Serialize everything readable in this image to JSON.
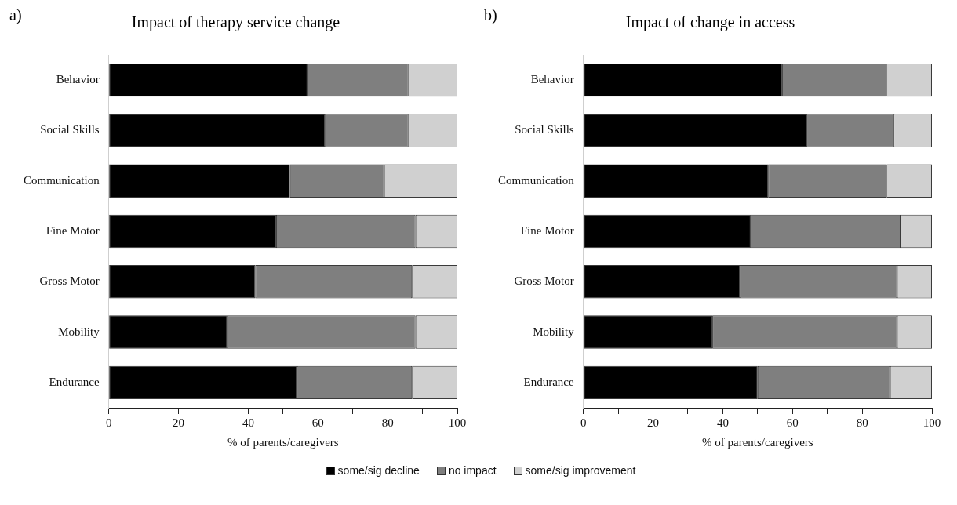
{
  "chart_data": [
    {
      "type": "bar",
      "orientation": "horizontal",
      "stacked": true,
      "title": "Impact of therapy service change",
      "xlabel": "% of parents/caregivers",
      "annotations": [
        "a)"
      ],
      "categories": [
        "Behavior",
        "Social Skills",
        "Communication",
        "Fine Motor",
        "Gross Motor",
        "Mobility",
        "Endurance"
      ],
      "series": [
        {
          "color": "#000000",
          "values": [
            57,
            62,
            52,
            48,
            42,
            34,
            54
          ]
        },
        {
          "color": "#7f7f7f",
          "values": [
            29,
            24,
            27,
            40,
            45,
            54,
            33
          ]
        },
        {
          "color": "#d0d0d0",
          "values": [
            14,
            14,
            21,
            12,
            13,
            12,
            13
          ]
        }
      ],
      "xlim": [
        0,
        100
      ],
      "xticks": [
        0,
        {
          "value": 10,
          "label": null
        },
        20,
        {
          "value": 30,
          "label": null
        },
        40,
        {
          "value": 50,
          "label": null
        },
        60,
        {
          "value": 70,
          "label": null
        },
        80,
        {
          "value": 90,
          "label": null
        },
        100
      ],
      "grid": false
    },
    {
      "type": "bar",
      "orientation": "horizontal",
      "stacked": true,
      "title": "Impact of change in access",
      "xlabel": "% of parents/caregivers",
      "annotations": [
        "b)"
      ],
      "categories": [
        "Behavior",
        "Social Skills",
        "Communication",
        "Fine Motor",
        "Gross Motor",
        "Mobility",
        "Endurance"
      ],
      "series": [
        {
          "name": "some/sig decline",
          "color": "#000000",
          "values": [
            57,
            64,
            53,
            48,
            45,
            37,
            50
          ]
        },
        {
          "name": "no impact",
          "color": "#7f7f7f",
          "values": [
            30,
            25,
            34,
            43,
            45,
            53,
            38
          ]
        },
        {
          "name": "some/sig improvement",
          "color": "#d0d0d0",
          "values": [
            13,
            11,
            13,
            9,
            10,
            10,
            12
          ]
        }
      ],
      "xlim": [
        0,
        100
      ],
      "xticks": [
        0,
        {
          "value": 10,
          "label": null
        },
        20,
        {
          "value": 30,
          "label": null
        },
        40,
        {
          "value": 50,
          "label": null
        },
        60,
        {
          "value": 70,
          "label": null
        },
        80,
        {
          "value": 90,
          "label": null
        },
        100
      ],
      "grid": false,
      "legend": "bottom"
    }
  ]
}
